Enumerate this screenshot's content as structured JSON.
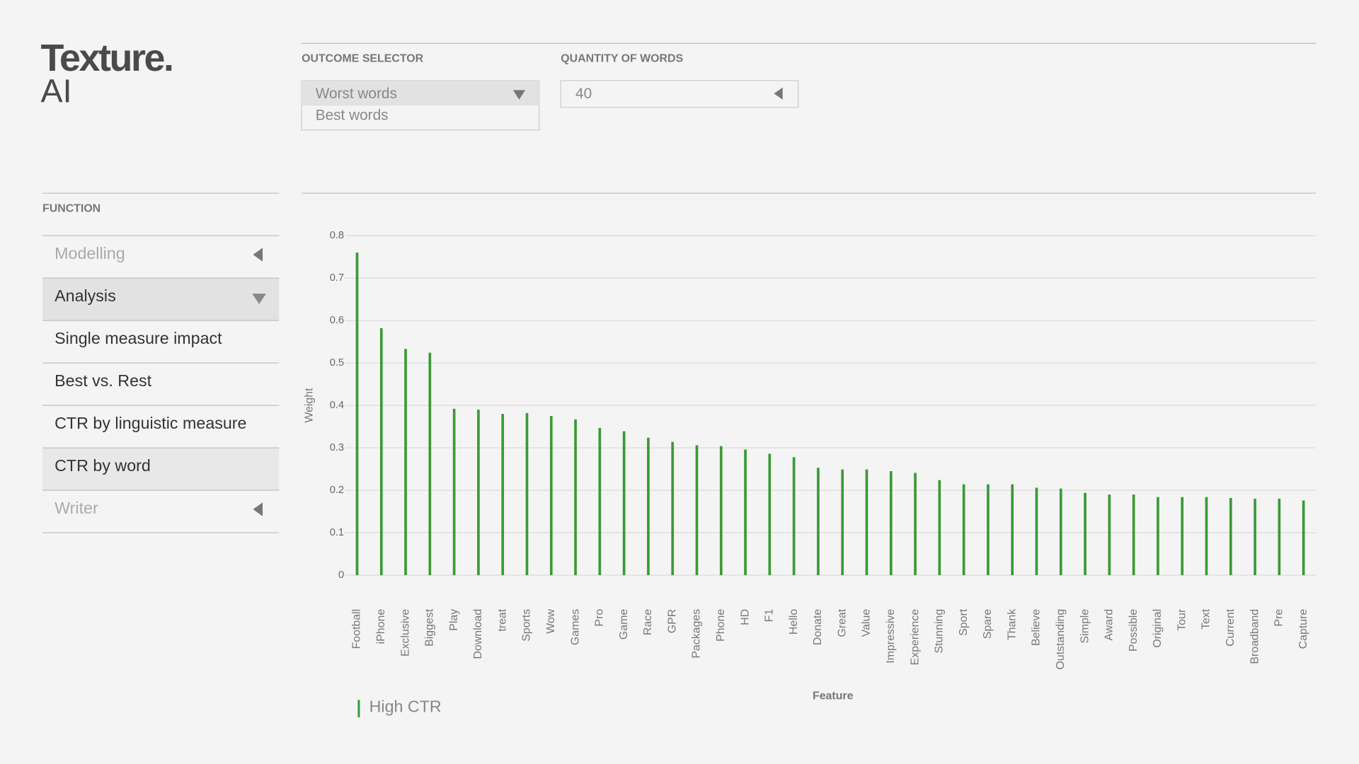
{
  "brand": {
    "name": "Texture.",
    "suffix": "AI"
  },
  "controls": {
    "outcome_selector": {
      "label": "OUTCOME SELECTOR",
      "options": [
        "Worst words",
        "Best words"
      ]
    },
    "quantity": {
      "label": "QUANTITY OF WORDS",
      "value": 40
    }
  },
  "function_menu": {
    "label": "FUNCTION",
    "items": [
      "Modelling",
      "Analysis",
      "Single measure impact",
      "Best vs. Rest",
      "CTR by linguistic measure",
      "CTR by word",
      "Writer"
    ]
  },
  "chart_data": {
    "type": "bar",
    "xlabel": "Feature",
    "ylabel": "Weight",
    "categories": [
      "Football",
      "iPhone",
      "Exclusive",
      "Biggest",
      "Play",
      "Download",
      "treat",
      "Sports",
      "Wow",
      "Games",
      "Pro",
      "Game",
      "Race",
      "GPR",
      "Packages",
      "Phone",
      "HD",
      "F1",
      "Hello",
      "Donate",
      "Great",
      "Value",
      "Impressive",
      "Experience",
      "Stunning",
      "Sport",
      "Spare",
      "Thank",
      "Believe",
      "Outstanding",
      "Simple",
      "Award",
      "Possible",
      "Original",
      "Tour",
      "Text",
      "Current",
      "Broadband",
      "Pre",
      "Capture"
    ],
    "series": [
      {
        "name": "High CTR",
        "color": "#3a9a35",
        "values": [
          0.76,
          0.582,
          0.533,
          0.524,
          0.392,
          0.39,
          0.38,
          0.382,
          0.375,
          0.367,
          0.347,
          0.339,
          0.324,
          0.314,
          0.306,
          0.304,
          0.296,
          0.286,
          0.278,
          0.253,
          0.249,
          0.249,
          0.245,
          0.241,
          0.224,
          0.214,
          0.214,
          0.214,
          0.206,
          0.204,
          0.194,
          0.19,
          0.19,
          0.184,
          0.184,
          0.184,
          0.182,
          0.18,
          0.18,
          0.176
        ]
      }
    ],
    "ylim": [
      0,
      0.8
    ],
    "yticks": [
      0,
      0.1,
      0.2,
      0.3,
      0.4,
      0.5,
      0.6,
      0.7,
      0.8
    ],
    "grid": true
  }
}
